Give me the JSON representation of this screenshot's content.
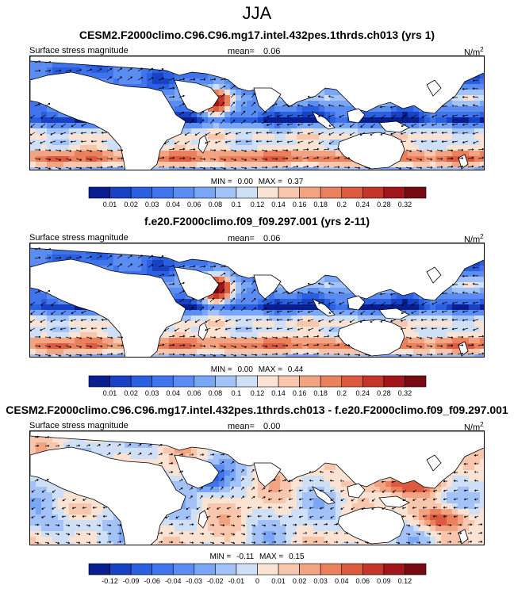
{
  "figure": {
    "title": "JJA"
  },
  "panels": [
    {
      "title": "CESM2.F2000climo.C96.C96.mg17.intel.432pes.1thrds.ch013 (yrs 1)",
      "left_label": "Surface stress magnitude",
      "mean_label": "mean=",
      "mean_value": "0.06",
      "units": "N/m",
      "units_exp": "2",
      "min_label": "MIN =",
      "min_value": "0.00",
      "max_label": "MAX =",
      "max_value": "0.37",
      "palette": "sequential"
    },
    {
      "title": "f.e20.F2000climo.f09_f09.297.001 (yrs 2-11)",
      "left_label": "Surface stress magnitude",
      "mean_label": "mean=",
      "mean_value": "0.06",
      "units": "N/m",
      "units_exp": "2",
      "min_label": "MIN =",
      "min_value": "0.00",
      "max_label": "MAX =",
      "max_value": "0.44",
      "palette": "sequential"
    },
    {
      "title": "CESM2.F2000climo.C96.C96.mg17.intel.432pes.1thrds.ch013 - f.e20.F2000climo.f09_f09.297.001",
      "left_label": "Surface stress magnitude",
      "mean_label": "mean=",
      "mean_value": "0.00",
      "units": "N/m",
      "units_exp": "2",
      "min_label": "MIN =",
      "min_value": "-0.11",
      "max_label": "MAX =",
      "max_value": "0.15",
      "palette": "diverging"
    }
  ],
  "colorbars": [
    {
      "ticks": [
        "0.01",
        "0.02",
        "0.03",
        "0.04",
        "0.06",
        "0.08",
        "0.1",
        "0.12",
        "0.14",
        "0.16",
        "0.18",
        "0.2",
        "0.24",
        "0.28",
        "0.32"
      ],
      "colors": [
        "#0a1f8f",
        "#1842c4",
        "#2a5fe0",
        "#3f74ec",
        "#5a8cf2",
        "#7aa6f6",
        "#a3c2f7",
        "#cfe0f6",
        "#fbe3d4",
        "#f8c6ac",
        "#f2a482",
        "#eb805d",
        "#dc5a3f",
        "#c4362a",
        "#a2161b",
        "#780a12"
      ]
    },
    {
      "ticks": [
        "0.01",
        "0.02",
        "0.03",
        "0.04",
        "0.06",
        "0.08",
        "0.1",
        "0.12",
        "0.14",
        "0.16",
        "0.18",
        "0.2",
        "0.24",
        "0.28",
        "0.32"
      ],
      "colors": [
        "#0a1f8f",
        "#1842c4",
        "#2a5fe0",
        "#3f74ec",
        "#5a8cf2",
        "#7aa6f6",
        "#a3c2f7",
        "#cfe0f6",
        "#fbe3d4",
        "#f8c6ac",
        "#f2a482",
        "#eb805d",
        "#dc5a3f",
        "#c4362a",
        "#a2161b",
        "#780a12"
      ]
    },
    {
      "ticks": [
        "-0.12",
        "-0.09",
        "-0.06",
        "-0.04",
        "-0.03",
        "-0.02",
        "-0.01",
        "0",
        "0.01",
        "0.02",
        "0.03",
        "0.04",
        "0.06",
        "0.09",
        "0.12"
      ],
      "colors": [
        "#0a1f8f",
        "#1842c4",
        "#2a5fe0",
        "#3f74ec",
        "#5a8cf2",
        "#7aa6f6",
        "#a3c2f7",
        "#cfe0f6",
        "#fbe3d4",
        "#f8c6ac",
        "#f2a482",
        "#eb805d",
        "#dc5a3f",
        "#c4362a",
        "#a2161b",
        "#780a12"
      ]
    }
  ],
  "chart_data": [
    {
      "type": "heatmap",
      "title": "CESM2.F2000climo.C96.C96.mg17.intel.432pes.1thrds.ch013 (yrs 1)",
      "variable": "Surface stress magnitude",
      "season": "JJA",
      "units": "N/m^2",
      "mean": 0.06,
      "min": 0.0,
      "max": 0.37,
      "contour_levels": [
        0.01,
        0.02,
        0.03,
        0.04,
        0.06,
        0.08,
        0.1,
        0.12,
        0.14,
        0.16,
        0.18,
        0.2,
        0.24,
        0.28,
        0.32
      ]
    },
    {
      "type": "heatmap",
      "title": "f.e20.F2000climo.f09_f09.297.001 (yrs 2-11)",
      "variable": "Surface stress magnitude",
      "season": "JJA",
      "units": "N/m^2",
      "mean": 0.06,
      "min": 0.0,
      "max": 0.44,
      "contour_levels": [
        0.01,
        0.02,
        0.03,
        0.04,
        0.06,
        0.08,
        0.1,
        0.12,
        0.14,
        0.16,
        0.18,
        0.2,
        0.24,
        0.28,
        0.32
      ]
    },
    {
      "type": "heatmap",
      "title": "CESM2.F2000climo.C96.C96.mg17.intel.432pes.1thrds.ch013 - f.e20.F2000climo.f09_f09.297.001",
      "variable": "Surface stress magnitude",
      "season": "JJA",
      "units": "N/m^2",
      "mean": 0.0,
      "min": -0.11,
      "max": 0.15,
      "contour_levels": [
        -0.12,
        -0.09,
        -0.06,
        -0.04,
        -0.03,
        -0.02,
        -0.01,
        0,
        0.01,
        0.02,
        0.03,
        0.04,
        0.06,
        0.09,
        0.12
      ]
    }
  ]
}
